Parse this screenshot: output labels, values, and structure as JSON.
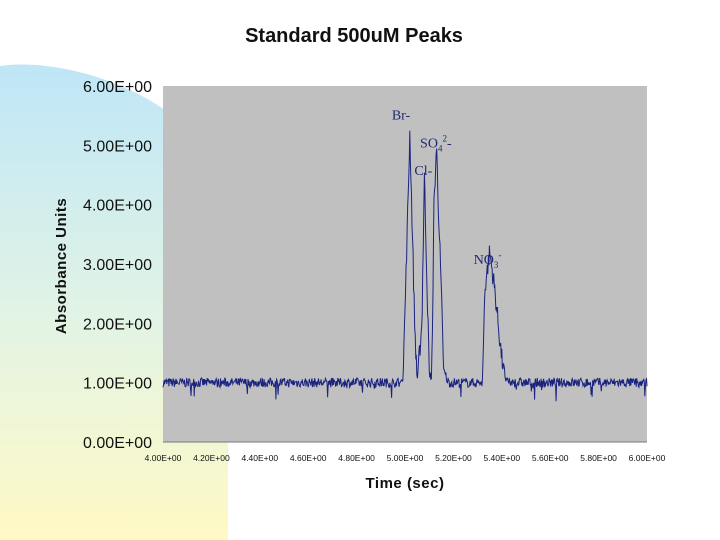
{
  "colors": {
    "plot_bg": "#c0c0c0",
    "trace": "#1a237e",
    "slide_top": "#bfe6f7",
    "slide_bottom": "#fff9c4"
  },
  "chart_data": {
    "type": "line",
    "title": "Standard 500uM  Peaks",
    "xlabel": "Time (sec)",
    "ylabel": "Absorbance Units",
    "xlim": [
      4.0,
      6.0
    ],
    "ylim": [
      0,
      6
    ],
    "grid": false,
    "xtick_labels": [
      "4.00E+00",
      "4.20E+00",
      "4.40E+00",
      "4.60E+00",
      "4.80E+00",
      "5.00E+00",
      "5.20E+00",
      "5.40E+00",
      "5.60E+00",
      "5.80E+00",
      "6.00E+00"
    ],
    "ytick_labels": [
      "0.00E+00",
      "1.00E+00",
      "2.00E+00",
      "3.00E+00",
      "4.00E+00",
      "5.00E+00",
      "6.00E+00"
    ],
    "baseline": 1.0,
    "peaks": [
      {
        "label": "Br-",
        "x": 5.02,
        "y": 5.2
      },
      {
        "label": "Cl-",
        "x": 5.08,
        "y": 4.5
      },
      {
        "label": "SO",
        "sub": "4",
        "sup": "2",
        "suffix": "-",
        "x": 5.12,
        "y": 5.0
      },
      {
        "label": "NO",
        "sub": "3",
        "sup": "-",
        "x": 5.35,
        "y": 3.2
      }
    ],
    "series": [
      {
        "name": "Absorbance",
        "x": [
          4.0,
          4.99,
          5.0,
          5.02,
          5.04,
          5.05,
          5.07,
          5.08,
          5.1,
          5.11,
          5.12,
          5.13,
          5.15,
          5.16,
          5.18,
          5.2,
          5.32,
          5.33,
          5.35,
          5.37,
          5.4,
          5.42,
          5.44,
          6.0
        ],
        "y": [
          1.0,
          1.0,
          2.2,
          5.2,
          2.0,
          1.0,
          2.0,
          4.5,
          1.2,
          1.0,
          4.0,
          5.0,
          2.5,
          1.2,
          1.0,
          1.0,
          1.0,
          2.6,
          3.2,
          2.6,
          1.4,
          1.0,
          1.0,
          1.0
        ]
      }
    ]
  }
}
